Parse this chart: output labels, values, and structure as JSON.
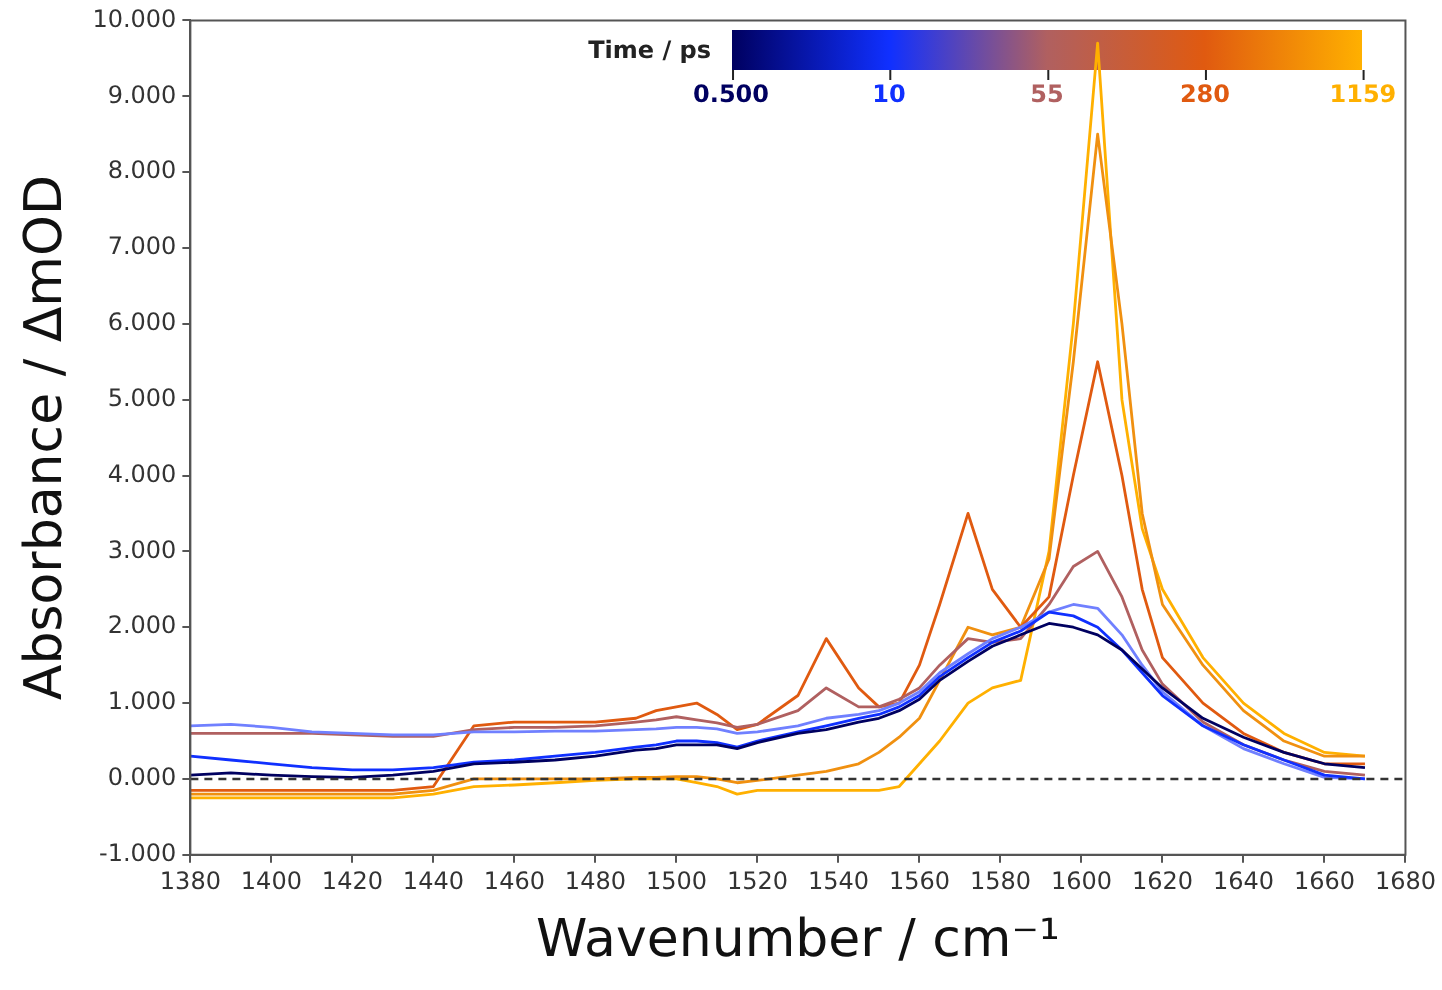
{
  "chart_data": {
    "type": "line",
    "xlabel": "Wavenumber / cm⁻¹",
    "ylabel": "Absorbance / ΔmOD",
    "legend_title": "Time / ps",
    "legend": "top right",
    "x": [
      1380,
      1390,
      1400,
      1410,
      1420,
      1430,
      1440,
      1450,
      1460,
      1470,
      1480,
      1490,
      1495,
      1500,
      1505,
      1510,
      1515,
      1520,
      1530,
      1537,
      1545,
      1550,
      1555,
      1560,
      1565,
      1572,
      1578,
      1585,
      1592,
      1598,
      1604,
      1610,
      1615,
      1620,
      1630,
      1640,
      1650,
      1660,
      1670
    ],
    "series": [
      {
        "name": "0.500",
        "color": "#000060",
        "values": [
          0.05,
          0.08,
          0.05,
          0.03,
          0.02,
          0.05,
          0.1,
          0.2,
          0.22,
          0.25,
          0.3,
          0.38,
          0.4,
          0.45,
          0.45,
          0.45,
          0.4,
          0.48,
          0.6,
          0.65,
          0.75,
          0.8,
          0.9,
          1.05,
          1.3,
          1.55,
          1.75,
          1.9,
          2.05,
          2.0,
          1.9,
          1.7,
          1.45,
          1.2,
          0.8,
          0.55,
          0.35,
          0.2,
          0.15
        ]
      },
      {
        "name": "10",
        "color": "#1030ff",
        "values": [
          0.3,
          0.25,
          0.2,
          0.15,
          0.12,
          0.12,
          0.15,
          0.22,
          0.25,
          0.3,
          0.35,
          0.42,
          0.45,
          0.5,
          0.5,
          0.48,
          0.42,
          0.5,
          0.62,
          0.7,
          0.8,
          0.85,
          0.95,
          1.1,
          1.35,
          1.6,
          1.8,
          1.95,
          2.2,
          2.15,
          2.0,
          1.7,
          1.4,
          1.1,
          0.7,
          0.45,
          0.25,
          0.05,
          0.0
        ]
      },
      {
        "color": "#7080ff",
        "values": [
          0.7,
          0.72,
          0.68,
          0.62,
          0.6,
          0.58,
          0.58,
          0.62,
          0.62,
          0.63,
          0.63,
          0.65,
          0.66,
          0.68,
          0.68,
          0.66,
          0.6,
          0.62,
          0.7,
          0.8,
          0.85,
          0.9,
          1.0,
          1.15,
          1.4,
          1.65,
          1.85,
          2.0,
          2.2,
          2.3,
          2.25,
          1.9,
          1.5,
          1.15,
          0.7,
          0.4,
          0.2,
          0.02,
          0.0
        ]
      },
      {
        "name": "55",
        "color": "#b06060",
        "values": [
          0.6,
          0.6,
          0.6,
          0.6,
          0.58,
          0.56,
          0.56,
          0.65,
          0.68,
          0.68,
          0.7,
          0.75,
          0.78,
          0.82,
          0.78,
          0.74,
          0.68,
          0.72,
          0.9,
          1.2,
          0.95,
          0.95,
          1.05,
          1.2,
          1.5,
          1.85,
          1.8,
          1.85,
          2.3,
          2.8,
          3.0,
          2.4,
          1.7,
          1.25,
          0.75,
          0.45,
          0.25,
          0.1,
          0.05
        ]
      },
      {
        "name": "280",
        "color": "#e05a10",
        "values": [
          -0.15,
          -0.15,
          -0.15,
          -0.15,
          -0.15,
          -0.15,
          -0.1,
          0.7,
          0.75,
          0.75,
          0.75,
          0.8,
          0.9,
          0.95,
          1.0,
          0.85,
          0.65,
          0.72,
          1.1,
          1.85,
          1.2,
          0.95,
          1.0,
          1.5,
          2.3,
          3.5,
          2.5,
          2.0,
          2.4,
          4.0,
          5.5,
          4.0,
          2.5,
          1.6,
          1.0,
          0.6,
          0.35,
          0.2,
          0.2
        ]
      },
      {
        "color": "#f09010",
        "values": [
          -0.2,
          -0.2,
          -0.2,
          -0.2,
          -0.2,
          -0.2,
          -0.15,
          0.0,
          0.0,
          0.0,
          0.0,
          0.02,
          0.02,
          0.03,
          0.03,
          0.0,
          -0.05,
          -0.02,
          0.05,
          0.1,
          0.2,
          0.35,
          0.55,
          0.8,
          1.3,
          2.0,
          1.9,
          2.0,
          2.9,
          5.5,
          8.5,
          6.0,
          3.5,
          2.3,
          1.5,
          0.9,
          0.5,
          0.3,
          0.3
        ]
      },
      {
        "name": "1159",
        "color": "#ffb000",
        "values": [
          -0.25,
          -0.25,
          -0.25,
          -0.25,
          -0.25,
          -0.25,
          -0.2,
          -0.1,
          -0.08,
          -0.05,
          -0.02,
          0.0,
          0.0,
          0.0,
          -0.05,
          -0.1,
          -0.2,
          -0.15,
          -0.15,
          -0.15,
          -0.15,
          -0.15,
          -0.1,
          0.2,
          0.5,
          1.0,
          1.2,
          1.3,
          3.0,
          6.0,
          9.7,
          5.0,
          3.3,
          2.5,
          1.6,
          1.0,
          0.6,
          0.35,
          0.3
        ]
      }
    ],
    "xlim": [
      1380,
      1680
    ],
    "xticks": [
      1380,
      1400,
      1420,
      1440,
      1460,
      1480,
      1500,
      1520,
      1540,
      1560,
      1580,
      1600,
      1620,
      1640,
      1660,
      1680
    ],
    "ylim": [
      -1,
      10
    ],
    "yticks": [
      {
        "value": -1,
        "label": "-1.000"
      },
      {
        "value": 0,
        "label": "0.000"
      },
      {
        "value": 1,
        "label": "1.000"
      },
      {
        "value": 2,
        "label": "2.000"
      },
      {
        "value": 3,
        "label": "3.000"
      },
      {
        "value": 4,
        "label": "4.000"
      },
      {
        "value": 5,
        "label": "5.000"
      },
      {
        "value": 6,
        "label": "6.000"
      },
      {
        "value": 7,
        "label": "7.000"
      },
      {
        "value": 8,
        "label": "8.000"
      },
      {
        "value": 9,
        "label": "9.000"
      },
      {
        "value": 10,
        "label": "10.000"
      }
    ],
    "ref_lines": [
      {
        "axis": "y",
        "value": 0,
        "color": "#333333",
        "line_style": "dashed"
      }
    ],
    "grid": false,
    "marker": "none",
    "line_style": "solid"
  }
}
